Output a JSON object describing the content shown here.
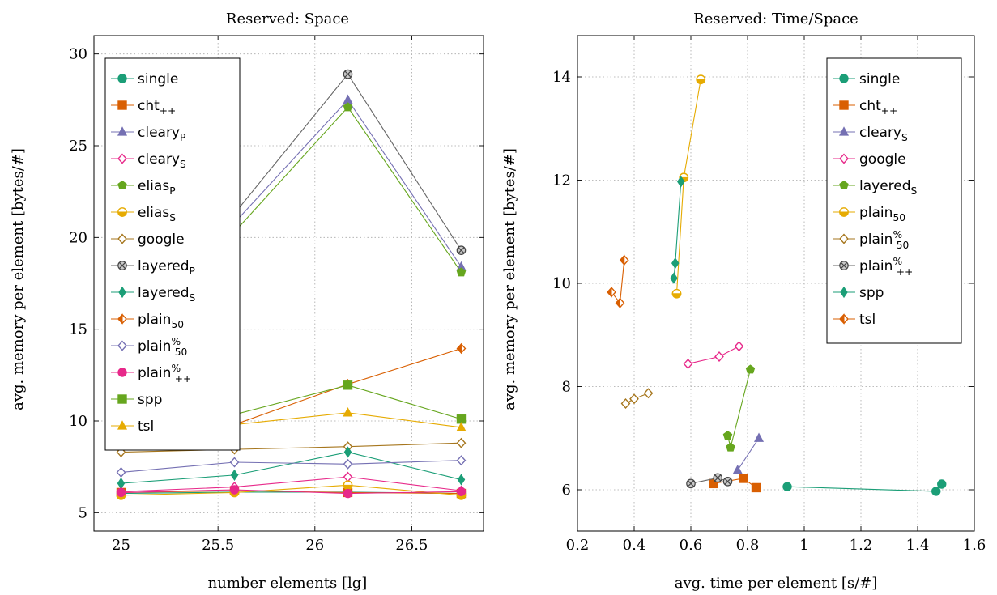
{
  "chart_data": [
    {
      "type": "line",
      "title": "Reserved: Space",
      "xlabel": "number elements [lg]",
      "ylabel": "avg. memory per element [bytes/#]",
      "xlim": [
        24.86,
        26.87
      ],
      "ylim": [
        4.0,
        31.0
      ],
      "xticks": [
        25,
        25.5,
        26,
        26.5
      ],
      "yticks": [
        5,
        10,
        15,
        20,
        25,
        30
      ],
      "grid": true,
      "legend_position": "top-left",
      "x": [
        25,
        25.585,
        26.17,
        26.755
      ],
      "series": [
        {
          "name": "single",
          "sub": "",
          "sup": "",
          "color": "#1b9e77",
          "marker": "circle",
          "values": [
            6.05,
            6.12,
            6.12,
            6.05
          ]
        },
        {
          "name": "cht",
          "sub": "++",
          "sup": "",
          "color": "#d95f02",
          "marker": "square",
          "values": [
            6.1,
            6.2,
            6.1,
            6.05
          ]
        },
        {
          "name": "cleary",
          "sub": "P",
          "sup": "",
          "color": "#7570b3",
          "marker": "triangle",
          "values": [
            18.0,
            20.8,
            27.5,
            18.4
          ]
        },
        {
          "name": "cleary",
          "sub": "S",
          "sup": "",
          "color": "#e7298a",
          "marker": "diamond-open",
          "values": [
            6.15,
            6.4,
            6.95,
            6.2
          ]
        },
        {
          "name": "elias",
          "sub": "P",
          "sup": "",
          "color": "#66a61e",
          "marker": "pentagon",
          "values": [
            17.6,
            20.3,
            27.1,
            18.1
          ]
        },
        {
          "name": "elias",
          "sub": "S",
          "sup": "",
          "color": "#e6ab02",
          "marker": "half-circle",
          "values": [
            5.95,
            6.1,
            6.5,
            5.95
          ]
        },
        {
          "name": "google",
          "sub": "",
          "sup": "",
          "color": "#a6761d",
          "marker": "diamond-open",
          "values": [
            8.3,
            8.45,
            8.6,
            8.8
          ]
        },
        {
          "name": "layered",
          "sub": "P",
          "sup": "",
          "color": "#666666",
          "marker": "circle-x",
          "values": [
            17.9,
            21.3,
            28.9,
            19.3
          ]
        },
        {
          "name": "layered",
          "sub": "S",
          "sup": "",
          "color": "#1b9e77",
          "marker": "diamond",
          "values": [
            6.6,
            7.05,
            8.3,
            6.8
          ]
        },
        {
          "name": "plain",
          "sub": "50",
          "sup": "",
          "color": "#d95f02",
          "marker": "half-diamond",
          "values": [
            9.1,
            9.8,
            12.0,
            13.95
          ]
        },
        {
          "name": "plain",
          "sub": "50",
          "sup": "%",
          "color": "#7570b3",
          "marker": "diamond-open",
          "values": [
            7.2,
            7.75,
            7.65,
            7.85
          ]
        },
        {
          "name": "plain",
          "sub": "++",
          "sup": "%",
          "color": "#e7298a",
          "marker": "circle",
          "values": [
            6.1,
            6.25,
            6.05,
            6.15
          ]
        },
        {
          "name": "spp",
          "sub": "",
          "sup": "",
          "color": "#66a61e",
          "marker": "square",
          "values": [
            9.7,
            10.35,
            11.95,
            10.1
          ]
        },
        {
          "name": "tsl",
          "sub": "",
          "sup": "",
          "color": "#e6ab02",
          "marker": "triangle",
          "values": [
            9.45,
            9.8,
            10.45,
            9.65
          ]
        }
      ]
    },
    {
      "type": "line",
      "title": "Reserved: Time/Space",
      "xlabel": "avg. time per element [s/#]",
      "ylabel": "avg. memory per element [bytes/#]",
      "xlim": [
        0.2,
        1.6
      ],
      "ylim": [
        5.2,
        14.8
      ],
      "xticks": [
        0.2,
        0.4,
        0.6,
        0.8,
        1,
        1.2,
        1.4,
        1.6
      ],
      "yticks": [
        6,
        8,
        10,
        12,
        14
      ],
      "grid": true,
      "legend_position": "top-right",
      "series": [
        {
          "name": "single",
          "sub": "",
          "sup": "",
          "color": "#1b9e77",
          "marker": "circle",
          "points": [
            [
              0.94,
              6.06
            ],
            [
              1.465,
              5.97
            ],
            [
              1.485,
              6.11
            ]
          ]
        },
        {
          "name": "cht",
          "sub": "++",
          "sup": "",
          "color": "#d95f02",
          "marker": "square",
          "points": [
            [
              0.68,
              6.12
            ],
            [
              0.785,
              6.22
            ],
            [
              0.83,
              6.04
            ]
          ]
        },
        {
          "name": "cleary",
          "sub": "S",
          "sup": "",
          "color": "#7570b3",
          "marker": "triangle",
          "points": [
            [
              0.765,
              6.38
            ],
            [
              0.84,
              7.0
            ]
          ]
        },
        {
          "name": "google",
          "sub": "",
          "sup": "",
          "color": "#e7298a",
          "marker": "diamond-open",
          "points": [
            [
              0.59,
              8.44
            ],
            [
              0.7,
              8.58
            ],
            [
              0.77,
              8.78
            ]
          ]
        },
        {
          "name": "layered",
          "sub": "S",
          "sup": "",
          "color": "#66a61e",
          "marker": "pentagon",
          "points": [
            [
              0.73,
              7.05
            ],
            [
              0.74,
              6.82
            ],
            [
              0.81,
              8.33
            ]
          ]
        },
        {
          "name": "plain",
          "sub": "50",
          "sup": "",
          "color": "#e6ab02",
          "marker": "half-circle",
          "points": [
            [
              0.55,
              9.8
            ],
            [
              0.575,
              12.05
            ],
            [
              0.635,
              13.95
            ]
          ]
        },
        {
          "name": "plain",
          "sub": "50",
          "sup": "%",
          "color": "#a6761d",
          "marker": "diamond-open",
          "points": [
            [
              0.37,
              7.67
            ],
            [
              0.4,
              7.76
            ],
            [
              0.45,
              7.87
            ]
          ]
        },
        {
          "name": "plain",
          "sub": "++",
          "sup": "%",
          "color": "#666666",
          "marker": "circle-x",
          "points": [
            [
              0.6,
              6.12
            ],
            [
              0.695,
              6.23
            ],
            [
              0.73,
              6.16
            ]
          ]
        },
        {
          "name": "spp",
          "sub": "",
          "sup": "",
          "color": "#1b9e77",
          "marker": "diamond",
          "points": [
            [
              0.54,
              10.1
            ],
            [
              0.545,
              10.39
            ],
            [
              0.565,
              11.97
            ]
          ]
        },
        {
          "name": "tsl",
          "sub": "",
          "sup": "",
          "color": "#d95f02",
          "marker": "half-diamond",
          "points": [
            [
              0.32,
              9.83
            ],
            [
              0.35,
              9.62
            ],
            [
              0.365,
              10.45
            ]
          ]
        }
      ]
    }
  ]
}
